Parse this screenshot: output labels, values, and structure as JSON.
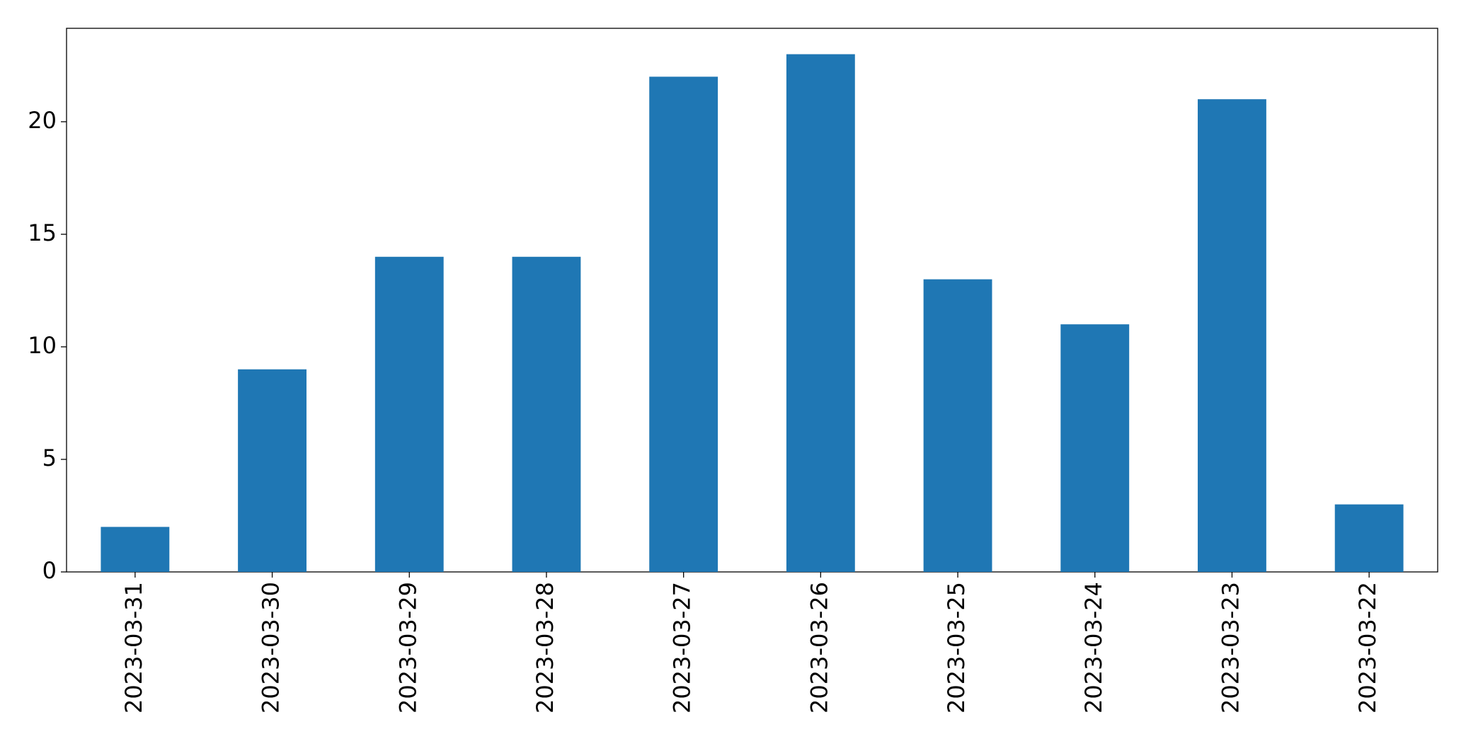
{
  "chart_data": {
    "type": "bar",
    "categories": [
      "2023-03-31",
      "2023-03-30",
      "2023-03-29",
      "2023-03-28",
      "2023-03-27",
      "2023-03-26",
      "2023-03-25",
      "2023-03-24",
      "2023-03-23",
      "2023-03-22"
    ],
    "values": [
      2,
      9,
      14,
      14,
      22,
      23,
      13,
      11,
      21,
      3
    ],
    "color": "#1f77b4",
    "ylim": [
      0,
      24.15
    ],
    "yticks": [
      0,
      5,
      10,
      15,
      20
    ],
    "grid": false
  }
}
